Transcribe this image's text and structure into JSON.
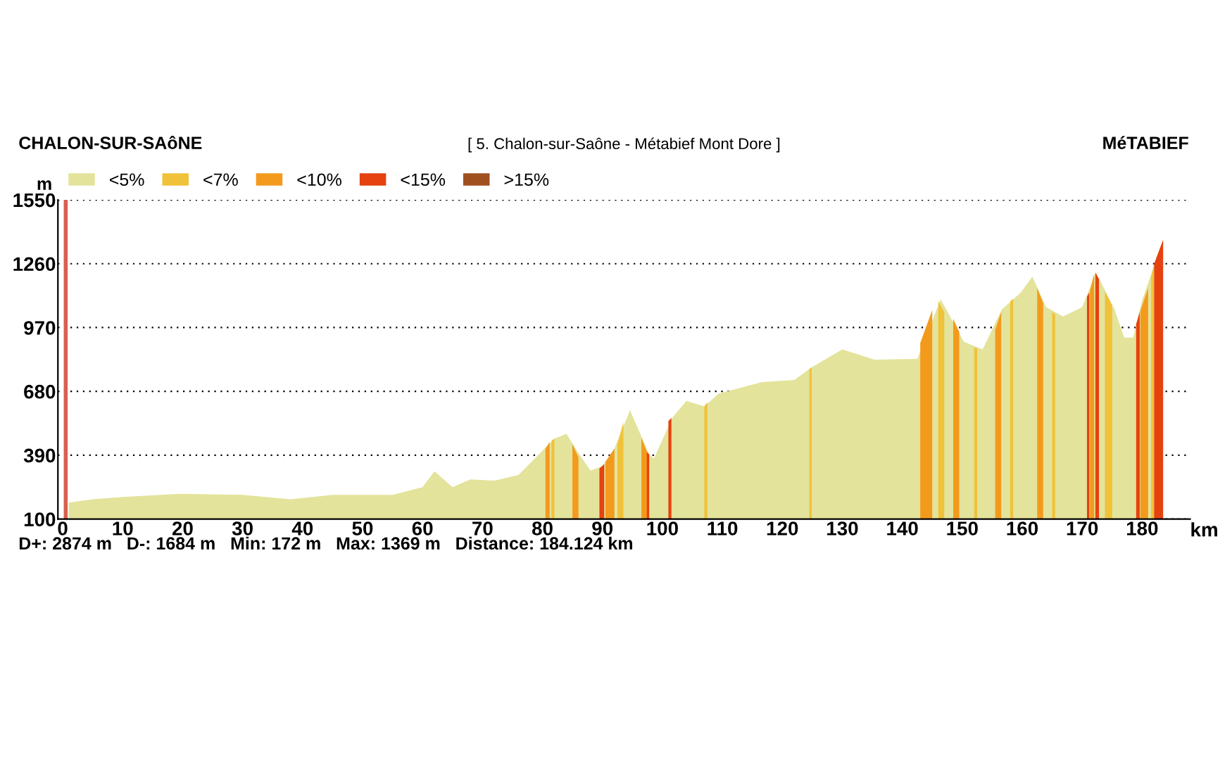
{
  "chart_data": {
    "type": "area",
    "title": "[ 5. Chalon-sur-Saône - Métabief Mont Dore ]",
    "xlabel": "km",
    "ylabel": "m",
    "annotations": [
      "CHALON-SUR-SAôNE",
      "MéTABIEF",
      "D+: 2874 m   D-: 1684 m   Min: 172 m   Max: 1369 m   Distance: 184.124 km"
    ],
    "xlim": [
      -0.8,
      188
    ],
    "ylim": [
      100,
      1550
    ],
    "xticks": [
      0,
      10,
      20,
      30,
      40,
      50,
      60,
      70,
      80,
      90,
      100,
      110,
      120,
      130,
      140,
      150,
      160,
      170,
      180
    ],
    "yticks": [
      100,
      390,
      680,
      970,
      1260,
      1550
    ],
    "grid": "y",
    "legend": "top left",
    "ref_lines": [
      {
        "axis": "x",
        "value": 0.5,
        "color": "#d86050"
      }
    ],
    "series": [
      {
        "name": "<5%",
        "color": "#e3e39b",
        "x": [
          1,
          5,
          10,
          20,
          30,
          38,
          45,
          55,
          60,
          62,
          65,
          68,
          72,
          76,
          78,
          82,
          84,
          86,
          88,
          90,
          92,
          94.6,
          97.8,
          98.6,
          101.7,
          104,
          107,
          109.4,
          116.6,
          122,
          124.7,
          130,
          135.4,
          142.5,
          146.4,
          150.3,
          153.4,
          156.6,
          159.7,
          161.7,
          164,
          166.8,
          170,
          172.3,
          175.4,
          177,
          178.5,
          180,
          183.5
        ],
        "values": [
          175,
          190,
          200,
          215,
          210,
          190,
          210,
          210,
          245,
          317,
          245,
          280,
          275,
          300,
          355,
          466,
          487,
          400,
          320,
          340,
          420,
          594,
          394,
          375,
          562,
          637,
          612,
          670,
          722,
          732,
          786,
          871,
          824,
          828,
          1099,
          905,
          871,
          1052,
          1127,
          1201,
          1063,
          1020,
          1063,
          1222,
          1052,
          924,
          924,
          1095,
          1369
        ]
      },
      {
        "name": "<7%",
        "color": "#f0c23a",
        "x": [
          81.5,
          82,
          null,
          92.5,
          93.5,
          null,
          107,
          107.5,
          null,
          124.5,
          124.9,
          null,
          146,
          147,
          null,
          152,
          152.5,
          null,
          158,
          158.5,
          null,
          165,
          165.5,
          null,
          173.8,
          175,
          null,
          181.5,
          182
        ],
        "values": [
          455,
          466,
          null,
          440,
          540,
          null,
          612,
          630,
          null,
          780,
          790,
          null,
          1090,
          1040,
          null,
          880,
          875,
          null,
          1090,
          1100,
          null,
          1040,
          1030,
          null,
          1135,
          1070,
          null,
          1200,
          1260
        ]
      },
      {
        "name": "<10%",
        "color": "#f39a1d",
        "x": [
          80.5,
          81.2,
          null,
          85,
          86,
          null,
          90.5,
          92,
          null,
          96.5,
          97.5,
          null,
          143,
          145,
          null,
          148.5,
          149.5,
          null,
          155.5,
          156.5,
          null,
          162.5,
          163.5,
          null,
          171.3,
          172,
          null,
          179.7,
          181
        ],
        "values": [
          420,
          450,
          null,
          440,
          380,
          null,
          360,
          420,
          null,
          470,
          400,
          null,
          900,
          1050,
          null,
          1010,
          950,
          null,
          960,
          1040,
          null,
          1150,
          1080,
          null,
          1135,
          1215,
          null,
          1045,
          1150
        ]
      },
      {
        "name": "<15%",
        "color": "#e5420f",
        "x": [
          89.5,
          90.3,
          null,
          97.4,
          97.8,
          null,
          101,
          101.5,
          null,
          170.8,
          171.2,
          null,
          172.2,
          172.8,
          null,
          179,
          179.6,
          null,
          182,
          183.5
        ],
        "values": [
          330,
          350,
          null,
          405,
          394,
          null,
          545,
          560,
          null,
          1110,
          1130,
          null,
          1220,
          1190,
          null,
          985,
          1040,
          null,
          1260,
          1369
        ]
      },
      {
        "name": ">15%",
        "color": "#a0501e"
      }
    ]
  }
}
